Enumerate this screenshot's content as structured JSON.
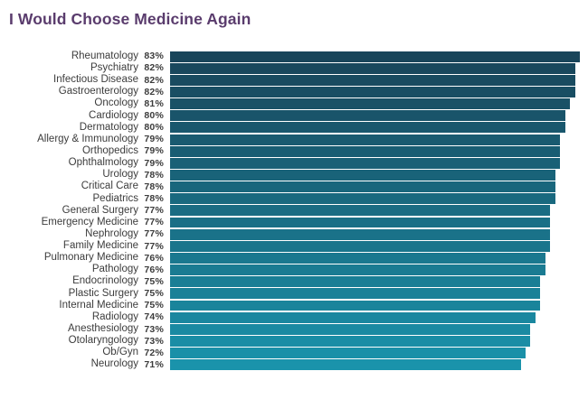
{
  "page": {
    "title_label": "I Would Choose Medicine Again"
  },
  "colors": {
    "title": "#5a3c6d",
    "label_text": "#3c3c3c",
    "bar_color_top": "#19455A",
    "bar_color_bottom": "#1A93AB",
    "background": "#ffffff"
  },
  "chart_data": {
    "type": "bar",
    "orientation": "horizontal",
    "title": "I Would Choose Medicine Again",
    "xlabel": "",
    "ylabel": "",
    "grid": false,
    "legend": false,
    "value_suffix": "%",
    "xlim": [
      0,
      83
    ],
    "categories": [
      "Rheumatology",
      "Psychiatry",
      "Infectious Disease",
      "Gastroenterology",
      "Oncology",
      "Cardiology",
      "Dermatology",
      "Allergy & Immunology",
      "Orthopedics",
      "Ophthalmology",
      "Urology",
      "Critical Care",
      "Pediatrics",
      "General Surgery",
      "Emergency Medicine",
      "Nephrology",
      "Family Medicine",
      "Pulmonary Medicine",
      "Pathology",
      "Endocrinology",
      "Plastic Surgery",
      "Internal Medicine",
      "Radiology",
      "Anesthesiology",
      "Otolaryngology",
      "Ob/Gyn",
      "Neurology"
    ],
    "values": [
      83,
      82,
      82,
      82,
      81,
      80,
      80,
      79,
      79,
      79,
      78,
      78,
      78,
      77,
      77,
      77,
      77,
      76,
      76,
      75,
      75,
      75,
      74,
      73,
      73,
      72,
      71
    ]
  }
}
